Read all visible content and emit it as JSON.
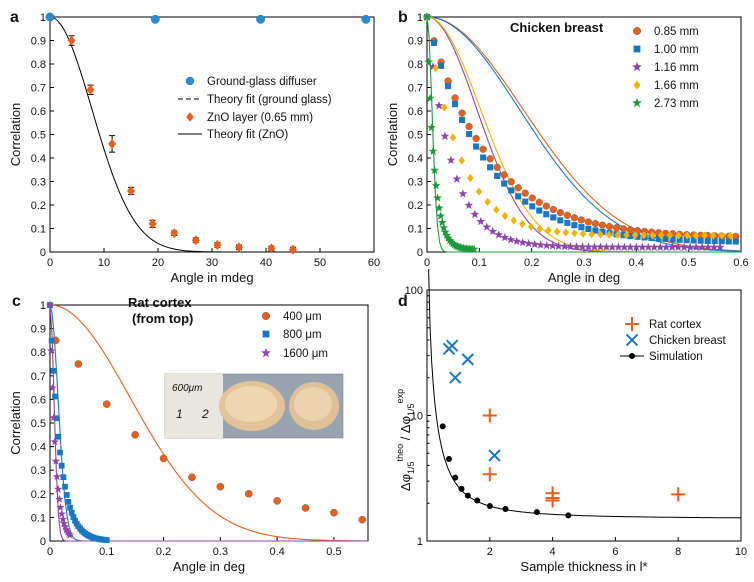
{
  "chart_data": [
    {
      "type": "scatter",
      "panel": "a",
      "xlabel": "Angle in mdeg",
      "ylabel": "Correlation",
      "xlim": [
        0,
        60
      ],
      "ylim": [
        0,
        1
      ],
      "xticks": [
        "0",
        "10",
        "20",
        "30",
        "40",
        "50",
        "60"
      ],
      "yticks": [
        "0",
        "0.1",
        "0.2",
        "0.3",
        "0.4",
        "0.5",
        "0.6",
        "0.7",
        "0.8",
        "0.9",
        "1"
      ],
      "legend_position": "center-right",
      "series": [
        {
          "name": "Ground-glass diffuser",
          "kind": "marker",
          "marker": "circle",
          "color": "#1f8fd6",
          "x": [
            0,
            19.5,
            39,
            58.5
          ],
          "y": [
            1.0,
            0.99,
            0.99,
            0.99
          ]
        },
        {
          "name": "Theory fit (ground glass)",
          "kind": "dashed-line",
          "color": "#000000",
          "x": [
            0,
            60
          ],
          "y": [
            1.0,
            1.0
          ]
        },
        {
          "name": "ZnO layer (0.65 mm)",
          "kind": "marker",
          "marker": "diamond",
          "color": "#e8601c",
          "x": [
            4,
            7.5,
            11.5,
            15,
            19,
            23,
            27,
            31,
            35,
            41,
            45
          ],
          "y": [
            0.9,
            0.69,
            0.46,
            0.26,
            0.12,
            0.08,
            0.05,
            0.03,
            0.02,
            0.015,
            0.01
          ],
          "yerr": [
            0.02,
            0.02,
            0.035,
            0.015,
            0.015,
            0.01,
            0.01,
            0.01,
            0.01,
            0.01,
            0.01
          ]
        },
        {
          "name": "Theory fit (ZnO)",
          "kind": "line",
          "color": "#000000",
          "model": "gaussian",
          "width": 11
        }
      ]
    },
    {
      "type": "scatter",
      "panel": "b",
      "title": "Chicken breast",
      "xlabel": "Angle in deg",
      "ylabel": "Correlation",
      "xlim": [
        0,
        0.6
      ],
      "ylim": [
        0,
        1
      ],
      "xticks": [
        "0",
        "0.1",
        "0.2",
        "0.3",
        "0.4",
        "0.5",
        "0.6"
      ],
      "yticks": [
        "0",
        "0.1",
        "0.2",
        "0.3",
        "0.4",
        "0.5",
        "0.6",
        "0.7",
        "0.8",
        "0.9",
        "1"
      ],
      "legend_position": "top-right",
      "series": [
        {
          "name": "0.85 mm",
          "marker": "circle",
          "color": "#e8601c",
          "alpha": 0.1175,
          "floor": 0.06,
          "npts": 45,
          "xmax": 0.59,
          "fit_width": 0.26
        },
        {
          "name": "1.00 mm",
          "marker": "square",
          "color": "#1a78c2",
          "alpha": 0.11,
          "floor": 0.04,
          "npts": 45,
          "xmax": 0.59,
          "fit_width": 0.25
        },
        {
          "name": "1.16 mm",
          "marker": "star",
          "color": "#8e44ad",
          "alpha": 0.047,
          "floor": 0.02,
          "npts": 50,
          "xmax": 0.56,
          "fit_width": 0.135
        },
        {
          "name": "1.66 mm",
          "marker": "diamond",
          "color": "#f0b400",
          "alpha": 0.062,
          "floor": 0.07,
          "npts": 36,
          "xmax": 0.58,
          "fit_width": 0.145
        },
        {
          "name": "2.73 mm",
          "marker": "star",
          "color": "#1e9a3a",
          "alpha": 0.0135,
          "floor": 0.01,
          "npts": 32,
          "xmax": 0.09,
          "fit_width": 0.0135
        }
      ]
    },
    {
      "type": "scatter",
      "panel": "c",
      "title": "Rat cortex",
      "subtitle": "(from top)",
      "xlabel": "Angle in deg",
      "ylabel": "Correlation",
      "xlim": [
        0,
        0.56
      ],
      "ylim": [
        0,
        1
      ],
      "xticks": [
        "0",
        "0.1",
        "0.2",
        "0.3",
        "0.4",
        "0.5"
      ],
      "yticks": [
        "0",
        "0.1",
        "0.2",
        "0.3",
        "0.4",
        "0.5",
        "0.6",
        "0.7",
        "0.8",
        "0.9",
        "1"
      ],
      "legend_position": "top-right",
      "inset_photo_labels": [
        "600μm",
        "1",
        "2"
      ],
      "series": [
        {
          "name": "400 μm",
          "marker": "circle",
          "color": "#e8601c",
          "x": [
            0.01,
            0.05,
            0.1,
            0.15,
            0.2,
            0.25,
            0.3,
            0.35,
            0.4,
            0.45,
            0.5,
            0.55
          ],
          "y": [
            0.85,
            0.75,
            0.58,
            0.45,
            0.35,
            0.27,
            0.23,
            0.2,
            0.17,
            0.14,
            0.12,
            0.09
          ],
          "fit_width": 0.2
        },
        {
          "name": "800 μm",
          "marker": "square",
          "color": "#1a78c2",
          "alpha": 0.018,
          "floor": 0.0,
          "npts": 35,
          "xmax": 0.1,
          "fit_width": 0.02
        },
        {
          "name": "1600 μm",
          "marker": "star",
          "color": "#8e44ad",
          "alpha": 0.0095,
          "floor": 0.0,
          "npts": 18,
          "xmax": 0.035,
          "fit_width": 0.01
        }
      ]
    },
    {
      "type": "scatter",
      "panel": "d",
      "xlabel": "Sample thickness in l*",
      "ylabel": "Δφ1/5theo / Δφ1/5exp",
      "ylabel_parts": {
        "a": "Δφ",
        "b": "1/5",
        "c": "theo",
        "d": " / Δφ",
        "e": "1/5",
        "f": "exp"
      },
      "xlim": [
        0,
        10
      ],
      "ylim": [
        1,
        100
      ],
      "yscale": "log",
      "xticks": [
        "2",
        "4",
        "6",
        "8",
        "10"
      ],
      "yticks": [
        "1",
        "10",
        "100"
      ],
      "legend_position": "top-right",
      "series": [
        {
          "name": "Rat cortex",
          "marker": "plus",
          "color": "#e8601c",
          "x": [
            2,
            2,
            4,
            4,
            4,
            8
          ],
          "y": [
            10,
            3.4,
            2.4,
            2.2,
            2.1,
            2.35
          ]
        },
        {
          "name": "Chicken breast",
          "marker": "x",
          "color": "#1a78c2",
          "x": [
            0.7,
            0.8,
            0.9,
            1.3,
            2.15
          ],
          "y": [
            34,
            36,
            20,
            28,
            4.8
          ]
        },
        {
          "name": "Simulation",
          "marker": "dot",
          "color": "#000000",
          "x": [
            0.5,
            0.7,
            0.9,
            1.1,
            1.3,
            1.6,
            2.0,
            2.5,
            3.5,
            4.5
          ],
          "y": [
            8.2,
            4.5,
            3.2,
            2.6,
            2.3,
            2.1,
            1.9,
            1.8,
            1.7,
            1.6
          ]
        }
      ]
    }
  ]
}
